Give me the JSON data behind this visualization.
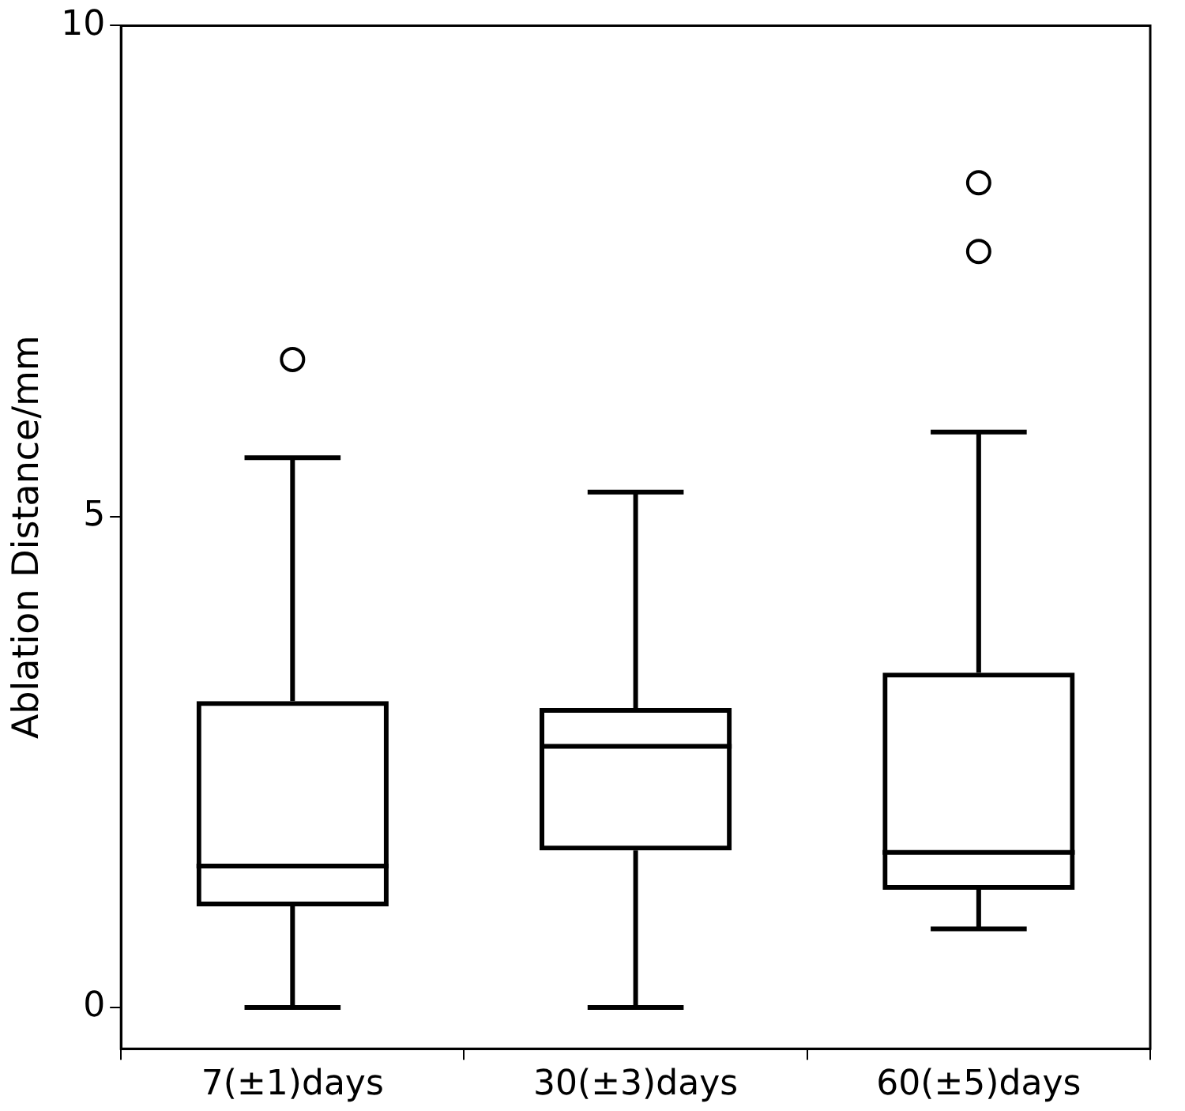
{
  "chart_data": {
    "type": "box",
    "ylabel": "Ablation Distance/mm",
    "categories": [
      "7(±1)days",
      "30(±3)days",
      "60(±5)days"
    ],
    "boxes": [
      {
        "low": 0,
        "q1": 1.03,
        "median": 1.44,
        "q3": 3.12,
        "high": 5.6,
        "outliers": [
          6.6
        ]
      },
      {
        "low": 0,
        "q1": 1.6,
        "median": 2.66,
        "q3": 3.05,
        "high": 5.25
      },
      {
        "low": 0.8,
        "q1": 1.2,
        "median": 1.58,
        "q3": 3.41,
        "high": 5.86,
        "outliers": [
          7.7,
          8.4
        ]
      }
    ],
    "color": "#000000",
    "ylim": [
      -0.42,
      10
    ],
    "yticks": [
      0,
      5,
      10
    ],
    "grid": false,
    "legend": false
  }
}
